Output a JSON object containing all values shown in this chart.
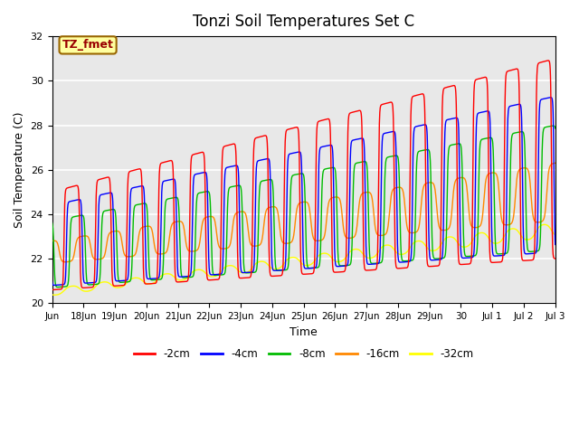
{
  "title": "Tonzi Soil Temperatures Set C",
  "xlabel": "Time",
  "ylabel": "Soil Temperature (C)",
  "ylim": [
    20,
    32
  ],
  "xlim": [
    0,
    16
  ],
  "annotation_text": "TZ_fmet",
  "annotation_bg": "#FFFFA0",
  "annotation_border": "#CC0000",
  "line_colors": [
    "#FF0000",
    "#0000FF",
    "#00BB00",
    "#FF8800",
    "#FFFF00"
  ],
  "line_labels": [
    "-2cm",
    "-4cm",
    "-8cm",
    "-16cm",
    "-32cm"
  ],
  "bg_color": "#E8E8E8",
  "fig_bg": "#FFFFFF",
  "grid_color": "#FFFFFF",
  "num_days": 16,
  "points_per_day": 144,
  "xtick_labels": [
    "Jun",
    "18Jun",
    "19Jun",
    "20Jun",
    "21Jun",
    "22Jun",
    "23Jun",
    "24Jun",
    "25Jun",
    "26Jun",
    "27Jun",
    "28Jun",
    "29Jun",
    "30",
    "Jul 1",
    "Jul 2",
    "Jul 3"
  ],
  "ytick_vals": [
    20,
    22,
    24,
    26,
    28,
    30,
    32
  ],
  "trend_start": [
    22.8,
    22.6,
    22.2,
    22.3,
    20.5
  ],
  "trend_end": [
    26.5,
    25.8,
    25.2,
    25.0,
    23.3
  ],
  "amplitude_start": [
    2.2,
    1.8,
    1.5,
    0.5,
    0.15
  ],
  "amplitude_end": [
    4.5,
    3.5,
    2.8,
    1.3,
    0.3
  ],
  "phase_shift": [
    0.0,
    0.08,
    0.18,
    0.35,
    0.0
  ],
  "sharpness": [
    6.0,
    6.0,
    5.0,
    2.5,
    1.0
  ]
}
